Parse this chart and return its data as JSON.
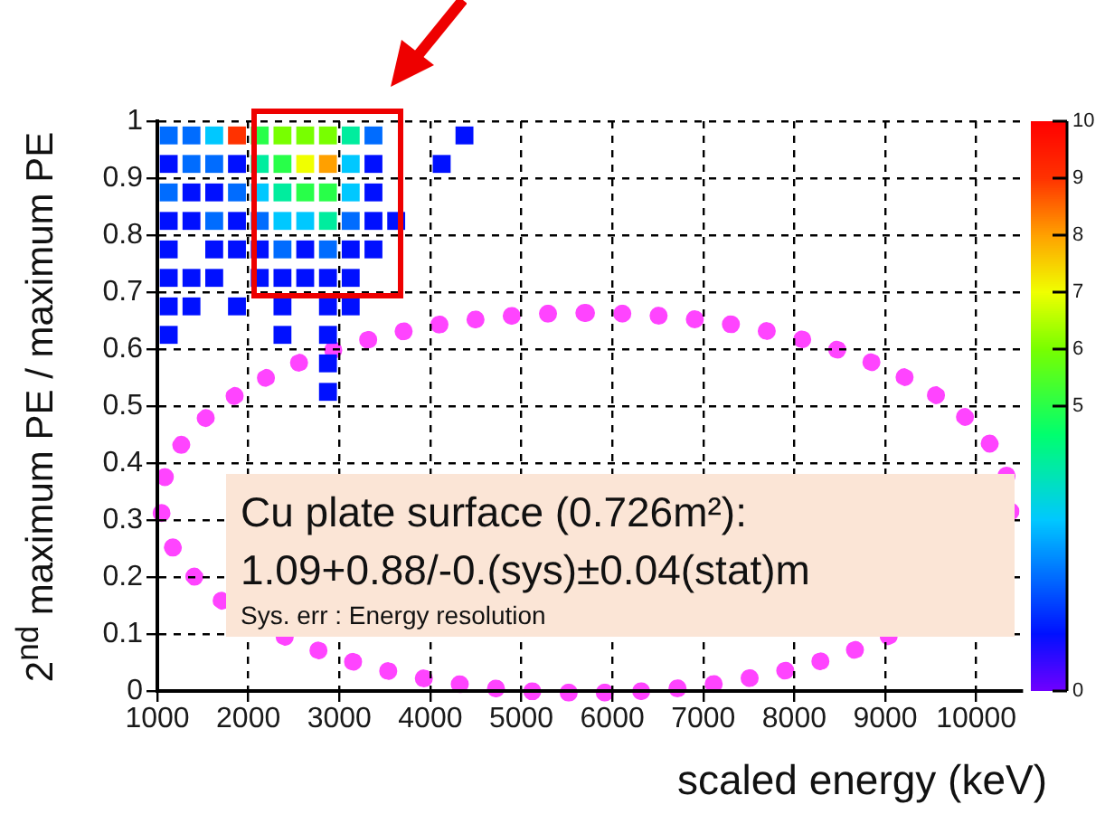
{
  "chart_data": {
    "type": "scatter",
    "xlabel": "scaled energy (keV)",
    "ylabel": "2$^{nd}$ maximum PE / maximum PE",
    "x": [
      1125,
      1375,
      1625,
      1875,
      2125,
      2375,
      2625,
      2875,
      3125,
      3375,
      4375,
      1125,
      1375,
      1625,
      1875,
      2125,
      2375,
      2625,
      2875,
      3125,
      3375,
      4125,
      1125,
      1375,
      1625,
      1875,
      2125,
      2375,
      2625,
      2875,
      3125,
      3375,
      1125,
      1375,
      1625,
      1875,
      2125,
      2375,
      2625,
      2875,
      3125,
      3375,
      3625,
      1125,
      1625,
      1875,
      2125,
      2375,
      2625,
      2875,
      3125,
      3375,
      1125,
      1375,
      1625,
      2125,
      2375,
      2625,
      2875,
      3125,
      1125,
      1375,
      1875,
      2375,
      2875,
      3125,
      1125,
      2375,
      2875,
      2875,
      2875
    ],
    "values": [
      0.975,
      0.975,
      0.975,
      0.975,
      0.975,
      0.975,
      0.975,
      0.975,
      0.975,
      0.975,
      0.975,
      0.925,
      0.925,
      0.925,
      0.925,
      0.925,
      0.925,
      0.925,
      0.925,
      0.925,
      0.925,
      0.925,
      0.875,
      0.875,
      0.875,
      0.875,
      0.875,
      0.875,
      0.875,
      0.875,
      0.875,
      0.875,
      0.825,
      0.825,
      0.825,
      0.825,
      0.825,
      0.825,
      0.825,
      0.825,
      0.825,
      0.825,
      0.825,
      0.775,
      0.775,
      0.775,
      0.775,
      0.775,
      0.775,
      0.775,
      0.775,
      0.775,
      0.725,
      0.725,
      0.725,
      0.725,
      0.725,
      0.725,
      0.725,
      0.725,
      0.675,
      0.675,
      0.675,
      0.675,
      0.675,
      0.675,
      0.625,
      0.625,
      0.625,
      0.575,
      0.525
    ],
    "cvalues": [
      2,
      2,
      3,
      9,
      5,
      6,
      6,
      6,
      4,
      2,
      1,
      1,
      2,
      2,
      1,
      4,
      5,
      7,
      8,
      3,
      1,
      1,
      2,
      1,
      1,
      2,
      3,
      4,
      5,
      5,
      3,
      1,
      1,
      1,
      2,
      1,
      2,
      3,
      3,
      4,
      2,
      1,
      1,
      1,
      1,
      1,
      1,
      2,
      1,
      2,
      1,
      1,
      1,
      1,
      1,
      1,
      1,
      1,
      1,
      1,
      1,
      1,
      1,
      1,
      1,
      1,
      1,
      1,
      1,
      1,
      1
    ],
    "marker": "square",
    "xlim": [
      1000,
      10500
    ],
    "xticks": [
      1000,
      2000,
      3000,
      4000,
      5000,
      6000,
      7000,
      8000,
      9000,
      10000
    ],
    "ylim": [
      0,
      1
    ],
    "yticks": [
      0,
      0.1,
      0.2,
      0.3,
      0.4,
      0.5,
      0.6,
      0.7,
      0.8,
      0.9,
      1
    ],
    "clim": [
      0,
      10
    ],
    "cticks": [
      0,
      5,
      6,
      7,
      8,
      9,
      10
    ],
    "grid": true,
    "legend": false,
    "annotations": [
      "Cu plate surface (0.726m²):",
      "1.09+0.88/-0.(sys)±0.04(stat)m",
      "Sys. err : Energy resolution"
    ]
  }
}
